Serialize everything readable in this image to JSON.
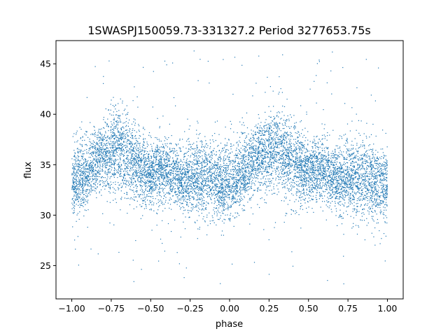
{
  "chart_data": {
    "type": "scatter",
    "title": "1SWASPJ150059.73-331327.2 Period 3277653.75s",
    "xlabel": "phase",
    "ylabel": "flux",
    "xlim": [
      -1.1,
      1.1
    ],
    "ylim": [
      21.7,
      47.3
    ],
    "xticks": [
      -1.0,
      -0.75,
      -0.5,
      -0.25,
      0.0,
      0.25,
      0.5,
      0.75,
      1.0
    ],
    "xtick_labels": [
      "−1.00",
      "−0.75",
      "−0.50",
      "−0.25",
      "0.00",
      "0.25",
      "0.50",
      "0.75",
      "1.00"
    ],
    "yticks": [
      25,
      30,
      35,
      40,
      45
    ],
    "ytick_labels": [
      "25",
      "30",
      "35",
      "40",
      "45"
    ],
    "grid": false,
    "marker_color": "#1f77b4",
    "series": [
      {
        "phase_profile": {
          "x": [
            0.0,
            0.05,
            0.1,
            0.15,
            0.2,
            0.25,
            0.3,
            0.35,
            0.4,
            0.45,
            0.5,
            0.55,
            0.6,
            0.65,
            0.7,
            0.75,
            0.8,
            0.85,
            0.9,
            0.95,
            1.0
          ],
          "median": [
            33.0,
            33.5,
            34.0,
            35.5,
            36.0,
            36.5,
            36.5,
            36.0,
            35.5,
            34.5,
            34.0,
            34.5,
            34.5,
            34.0,
            33.5,
            33.5,
            34.0,
            34.0,
            33.5,
            33.0,
            33.0
          ],
          "upper": [
            37.5,
            38.0,
            38.5,
            39.0,
            39.5,
            40.0,
            41.0,
            40.5,
            39.5,
            38.5,
            37.5,
            38.0,
            38.0,
            37.5,
            37.0,
            38.0,
            38.5,
            38.0,
            37.5,
            37.0,
            37.5
          ],
          "lower": [
            29.5,
            30.0,
            31.0,
            32.0,
            32.0,
            32.0,
            31.5,
            31.5,
            31.0,
            30.5,
            30.5,
            31.0,
            31.0,
            30.5,
            30.0,
            30.0,
            29.5,
            29.0,
            29.5,
            29.0,
            29.5
          ]
        },
        "outlier_range": [
          23.0,
          46.5
        ]
      }
    ]
  }
}
